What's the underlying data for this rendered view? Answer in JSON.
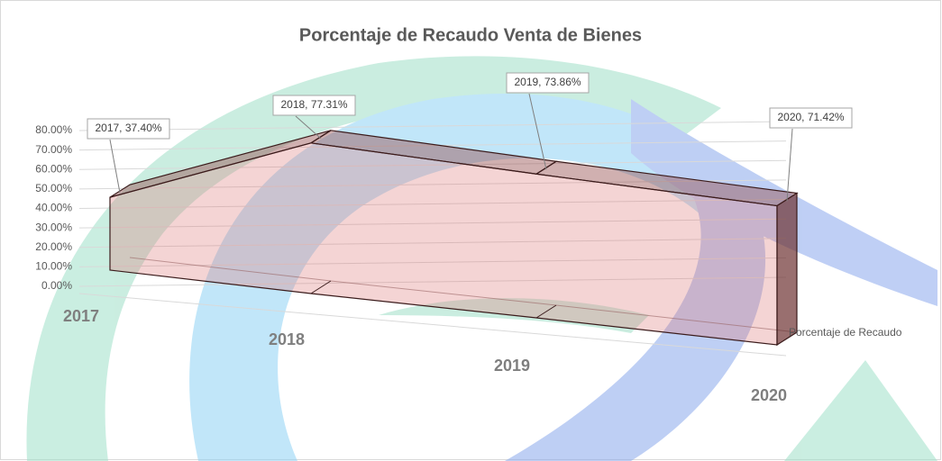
{
  "chart_data": {
    "type": "area3d",
    "title": "Porcentaje de Recaudo Venta de Bienes",
    "categories": [
      "2017",
      "2018",
      "2019",
      "2020"
    ],
    "series": [
      {
        "name": "Porcentaje de Recaudo",
        "color": "#c97a7a",
        "values": [
          37.4,
          77.31,
          73.86,
          71.42
        ],
        "value_labels": [
          "2017, 37.40%",
          "2018, 77.31%",
          "2019, 73.86%",
          "2020, 71.42%"
        ]
      }
    ],
    "ylim": [
      0,
      80
    ],
    "yticks": [
      {
        "value": 0,
        "label": "0.00%"
      },
      {
        "value": 10,
        "label": "10.00%"
      },
      {
        "value": 20,
        "label": "20.00%"
      },
      {
        "value": 30,
        "label": "30.00%"
      },
      {
        "value": 40,
        "label": "40.00%"
      },
      {
        "value": 50,
        "label": "50.00%"
      },
      {
        "value": 60,
        "label": "60.00%"
      },
      {
        "value": 70,
        "label": "70.00%"
      },
      {
        "value": 80,
        "label": "80.00%"
      }
    ],
    "grid": true
  }
}
